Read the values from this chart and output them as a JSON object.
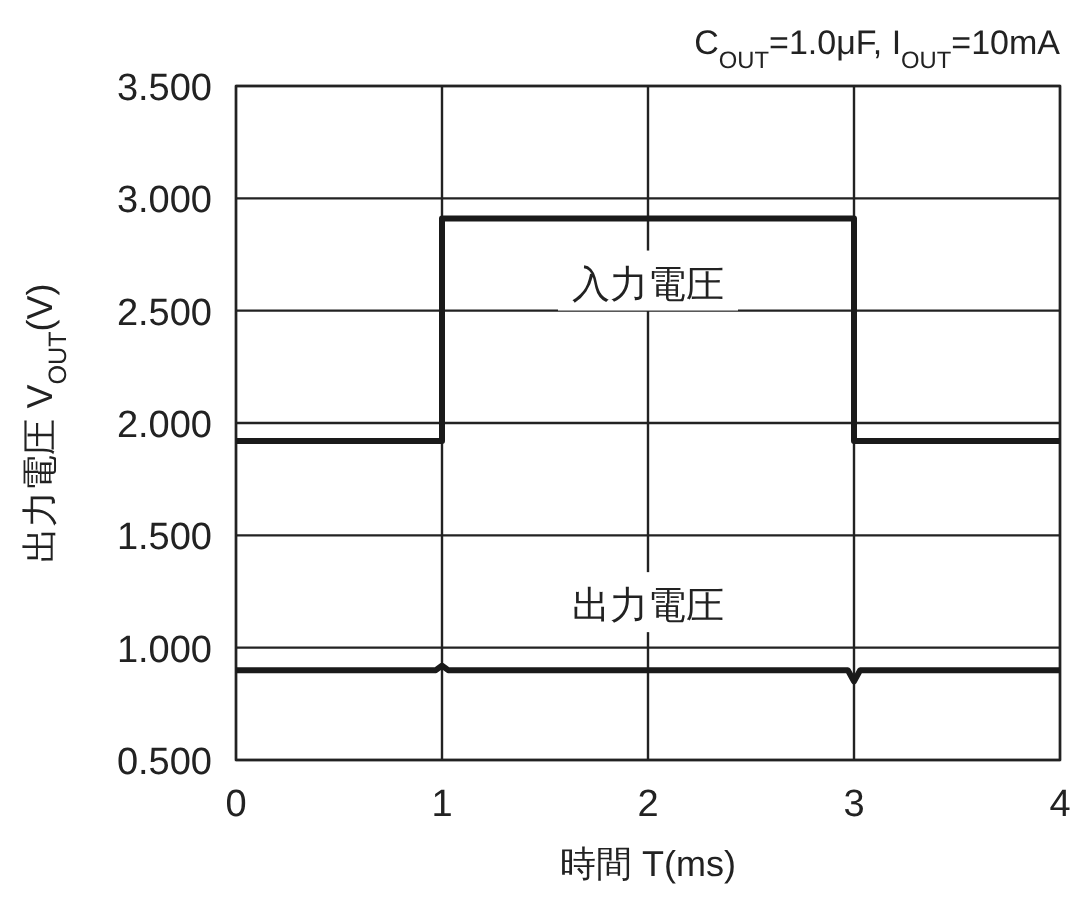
{
  "chart_data": {
    "type": "line",
    "title": "C$_{OUT}$=1.0μF, I$_{OUT}$=10mA",
    "xlabel": "時間 T(ms)",
    "ylabel": "出力電圧 V$_{OUT}$(V)",
    "series": [
      {
        "name": "入力電圧",
        "color": "#1a1a1a",
        "x": [
          0,
          1,
          1,
          3,
          3,
          4
        ],
        "values": [
          1.92,
          1.92,
          2.91,
          2.91,
          1.92,
          1.92
        ]
      },
      {
        "name": "出力電圧",
        "color": "#1a1a1a",
        "x": [
          0,
          0.97,
          1,
          1.03,
          2.97,
          3,
          3.03,
          4
        ],
        "values": [
          0.9,
          0.9,
          0.92,
          0.9,
          0.9,
          0.85,
          0.9,
          0.9
        ]
      }
    ],
    "xlim": [
      0,
      4
    ],
    "xticks": [
      0,
      1,
      2,
      3,
      4
    ],
    "ylim": [
      0.5,
      3.5
    ],
    "yticks": [
      {
        "value": 0.5,
        "label": "0.500"
      },
      {
        "value": 1,
        "label": "1.000"
      },
      {
        "value": 1.5,
        "label": "1.500"
      },
      {
        "value": 2,
        "label": "2.000"
      },
      {
        "value": 2.5,
        "label": "2.500"
      },
      {
        "value": 3,
        "label": "3.000"
      },
      {
        "value": 3.5,
        "label": "3.500"
      }
    ],
    "grid": true,
    "line_style": "solid",
    "marker": "none"
  }
}
